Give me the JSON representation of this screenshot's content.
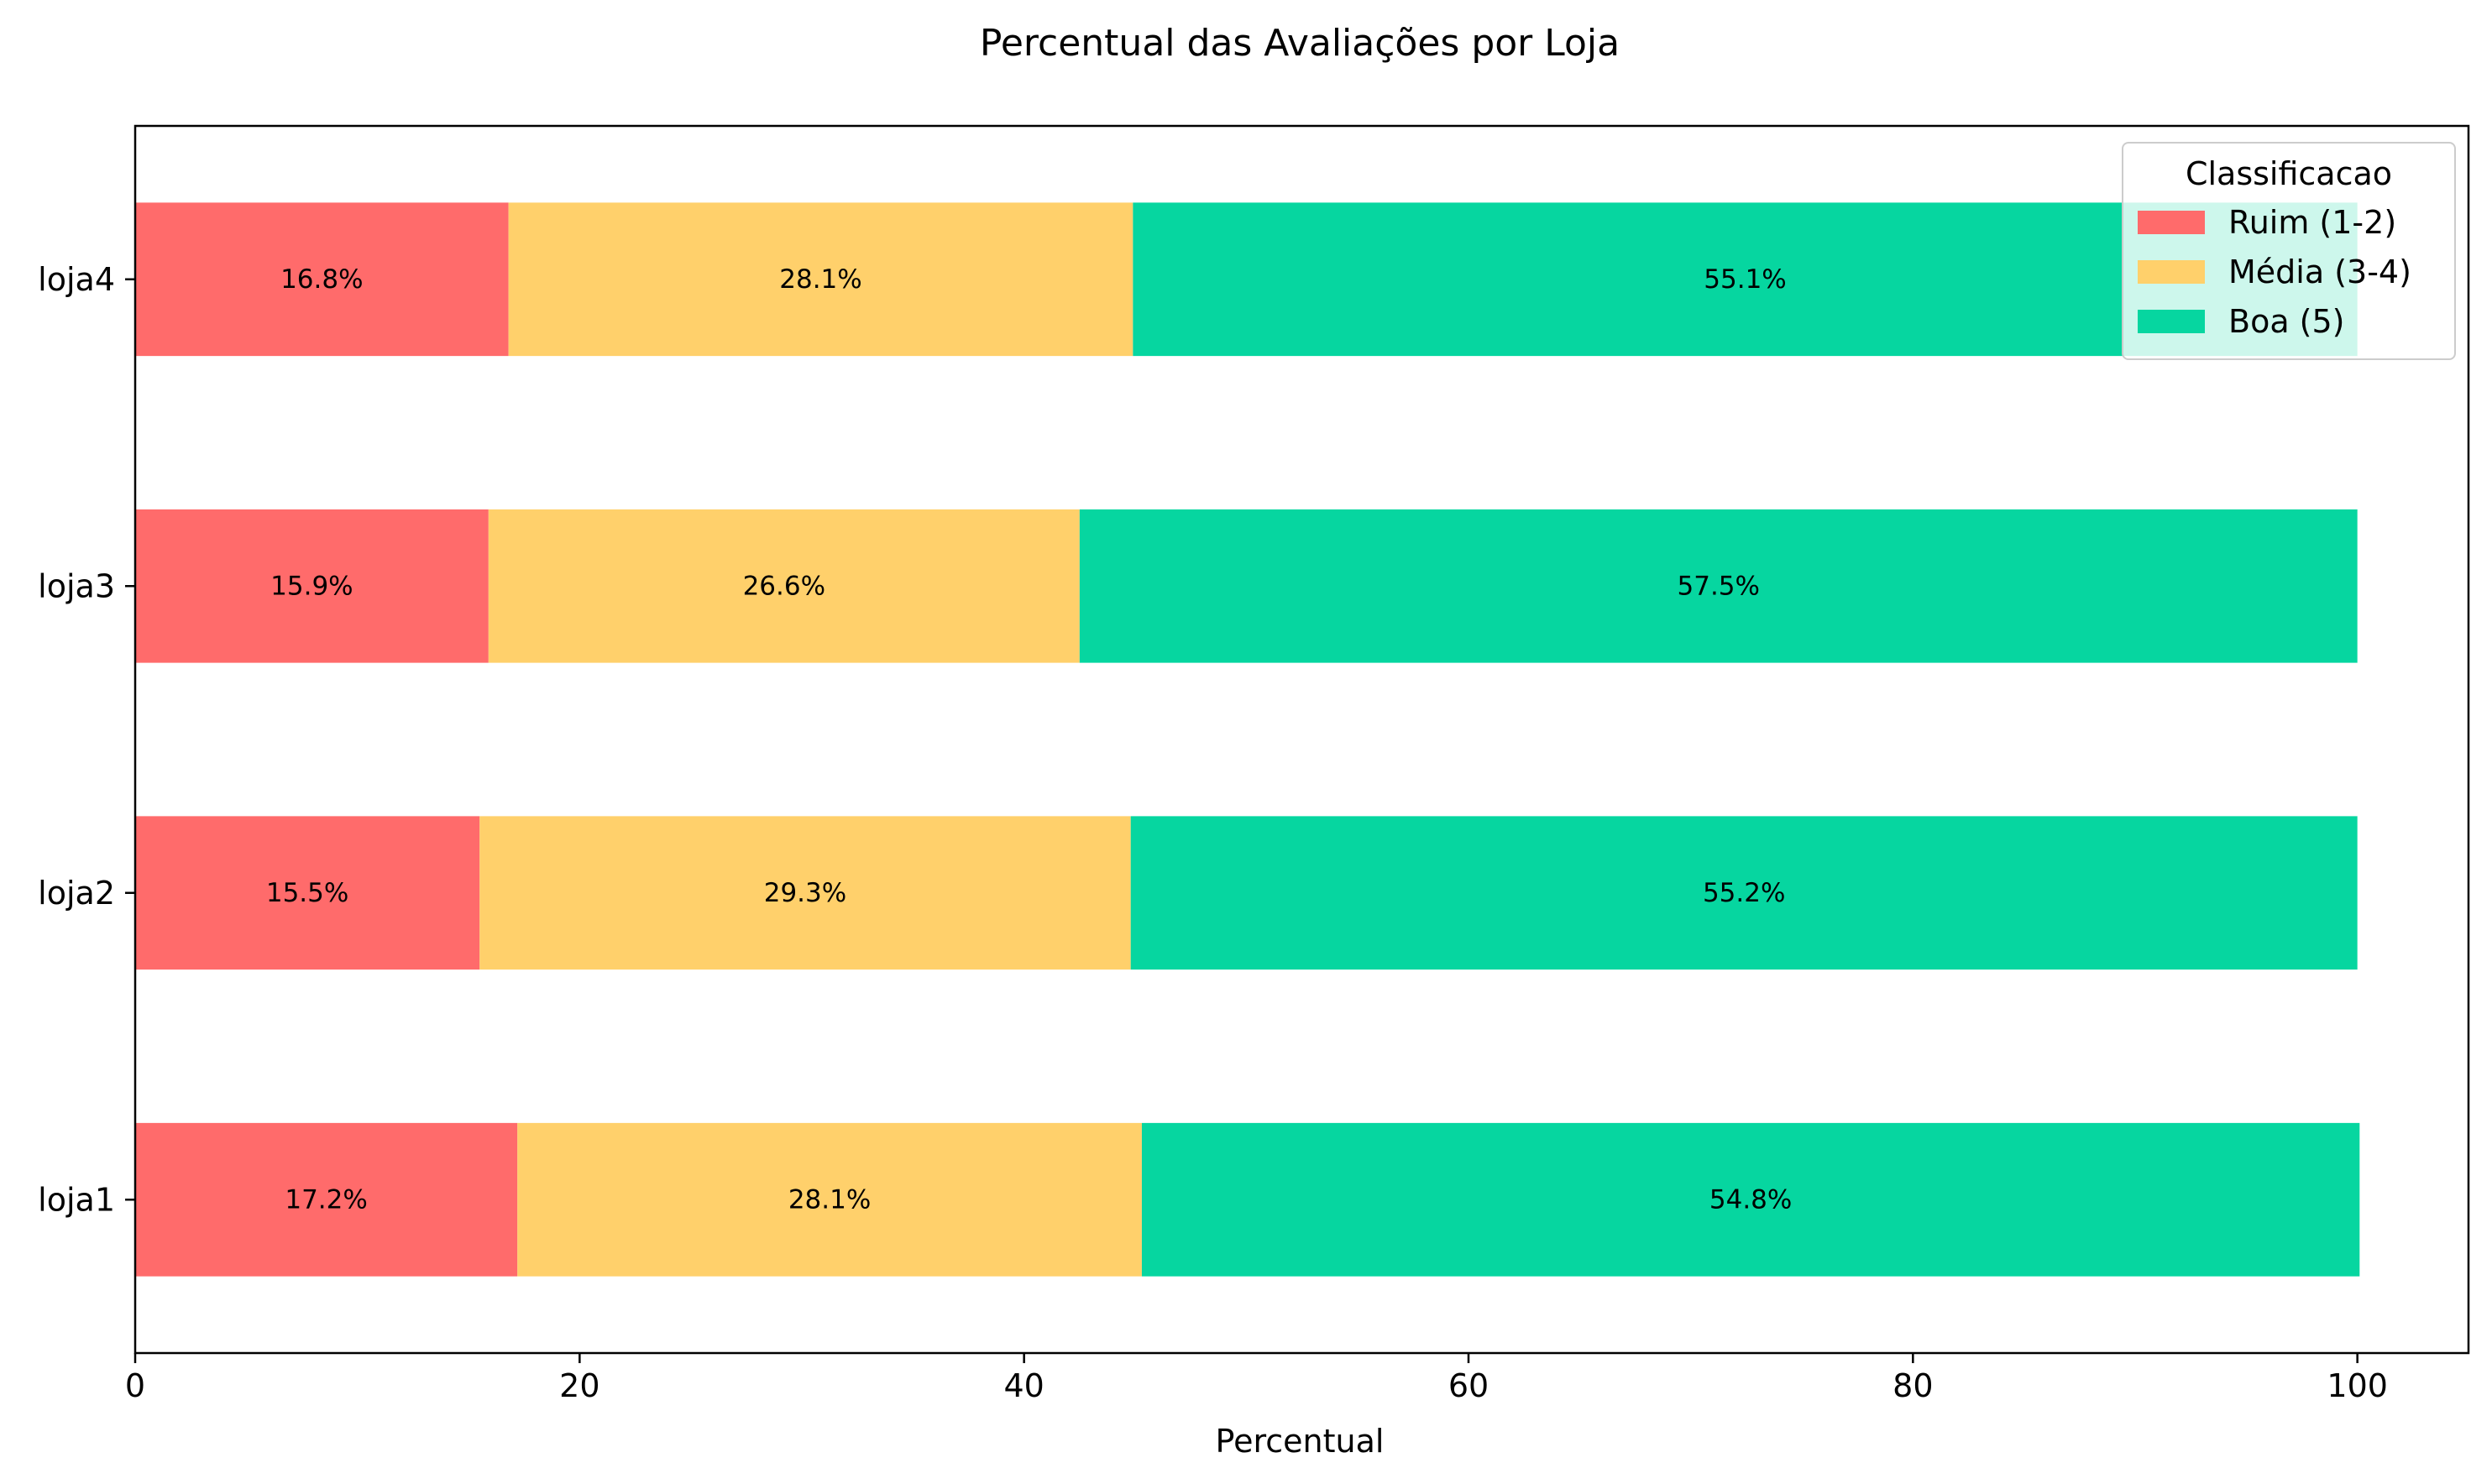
{
  "chart_data": {
    "type": "bar",
    "orientation": "horizontal",
    "stacked": true,
    "title": "Percentual das Avaliações por Loja",
    "xlabel": "Percentual",
    "ylabel": "",
    "xlim": [
      0,
      105
    ],
    "xticks": [
      0,
      20,
      40,
      60,
      80,
      100
    ],
    "categories": [
      "loja1",
      "loja2",
      "loja3",
      "loja4"
    ],
    "series": [
      {
        "name": "Ruim (1-2)",
        "color": "#ff6b6b",
        "values": [
          17.2,
          15.5,
          15.9,
          16.8
        ]
      },
      {
        "name": "Média (3-4)",
        "color": "#ffd06b",
        "values": [
          28.1,
          29.3,
          26.6,
          28.1
        ]
      },
      {
        "name": "Boa (5)",
        "color": "#06d6a0",
        "values": [
          54.8,
          55.2,
          57.5,
          55.1
        ]
      }
    ],
    "legend": {
      "title": "Classificacao",
      "position": "top-right"
    },
    "grid": false
  }
}
